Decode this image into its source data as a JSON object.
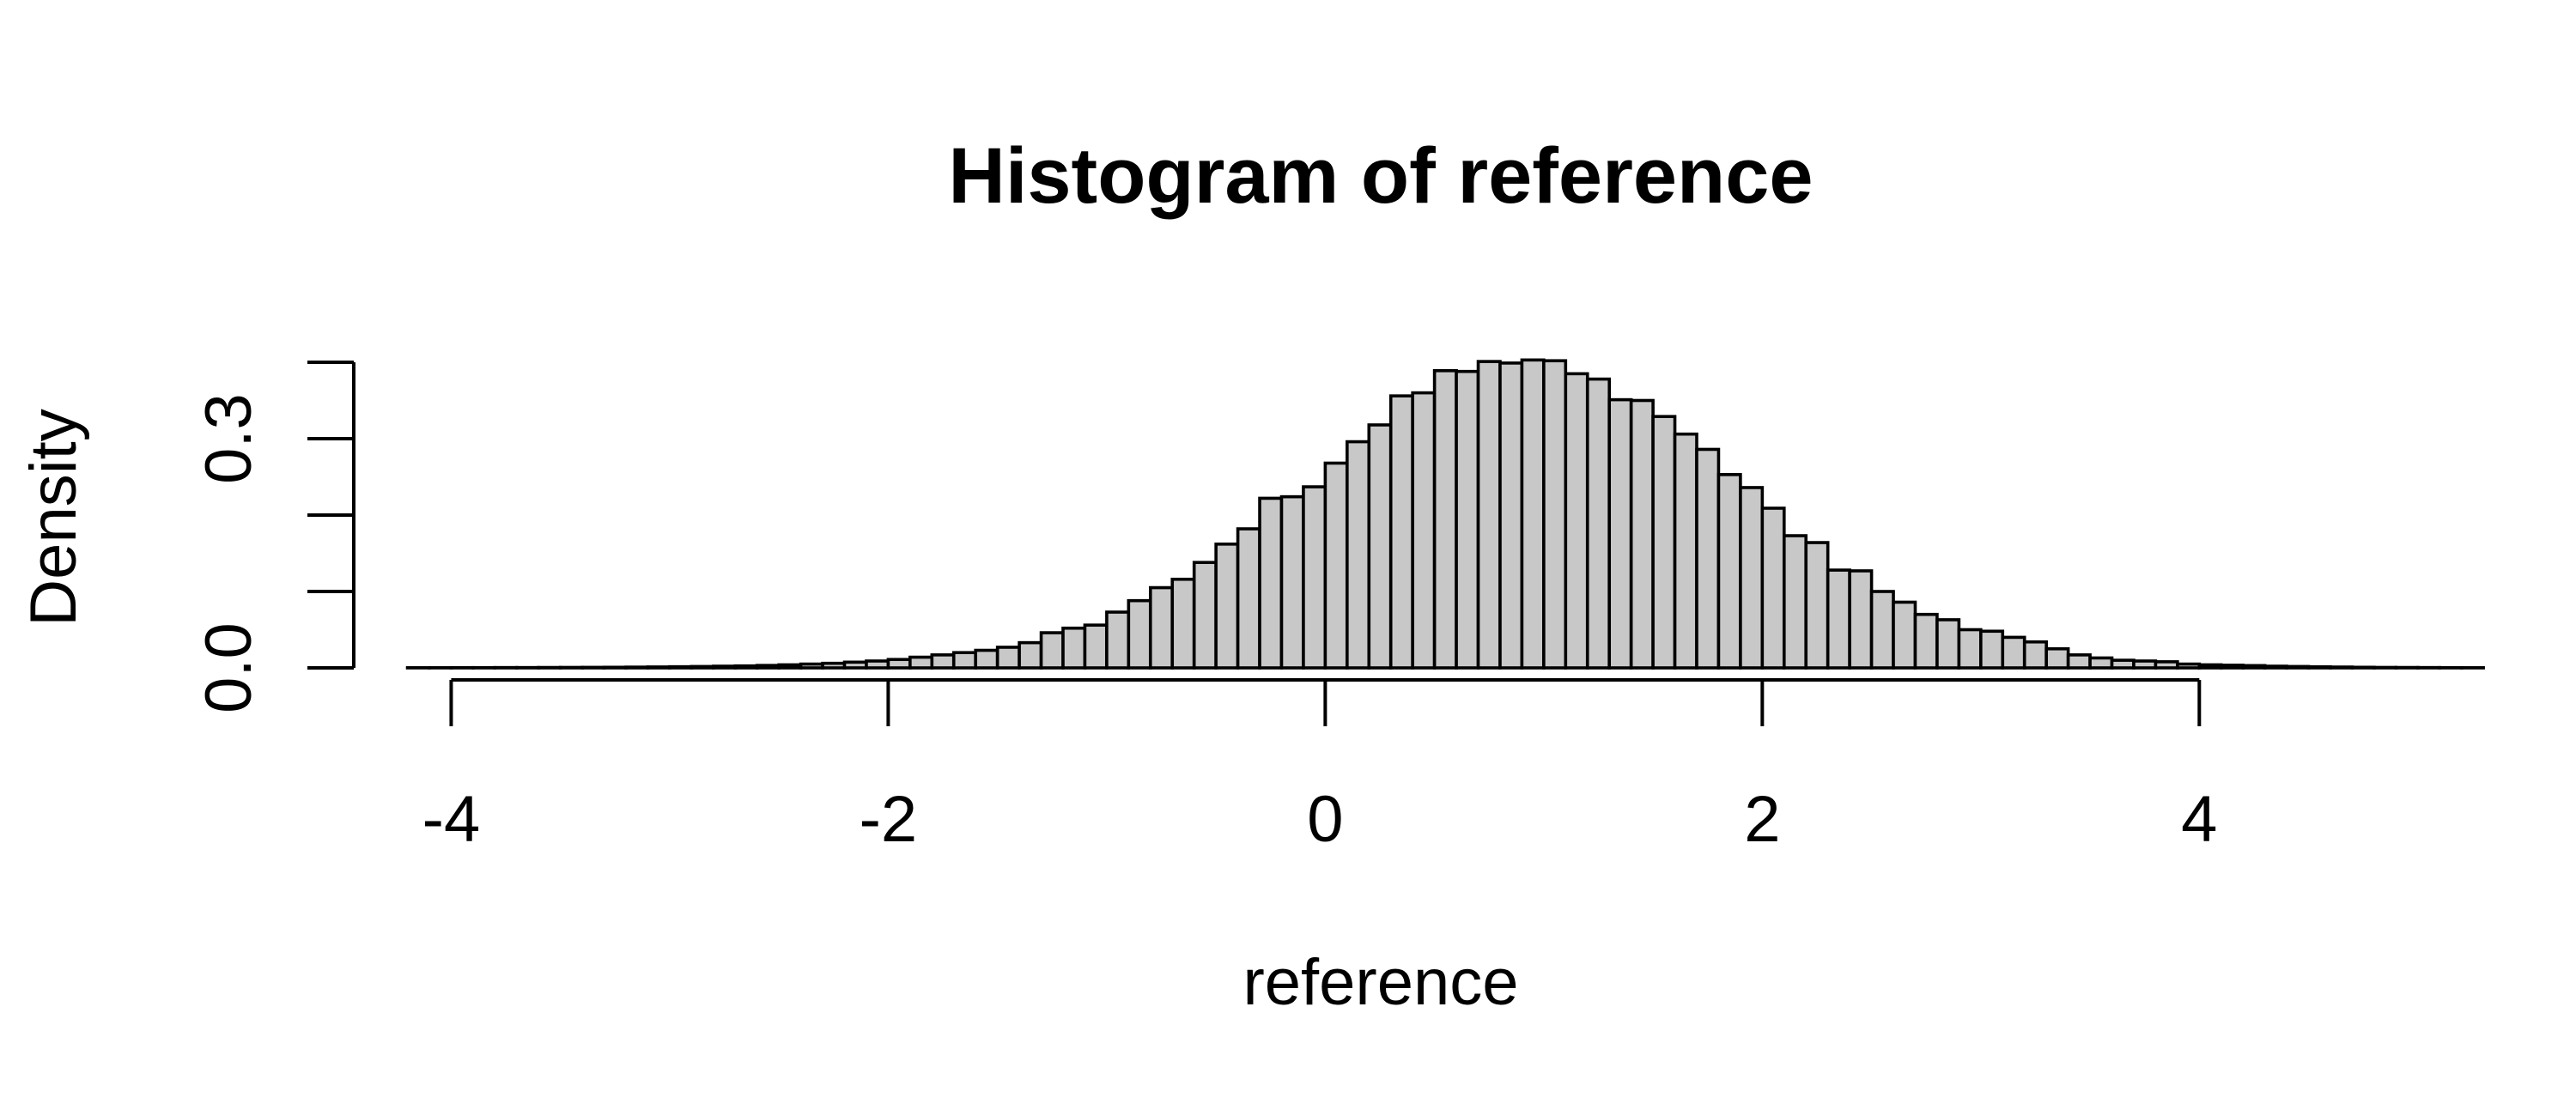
{
  "chart_data": {
    "type": "bar",
    "title": "Histogram of reference",
    "xlabel": "reference",
    "ylabel": "Density",
    "xlim": [
      -4.1,
      4.6
    ],
    "ylim": [
      0,
      0.4
    ],
    "x_ticks": [
      -4,
      -2,
      0,
      2,
      4
    ],
    "x_tick_labels": [
      "-4",
      "-2",
      "0",
      "2",
      "4"
    ],
    "y_ticks": [
      0.0,
      0.1,
      0.2,
      0.3,
      0.4
    ],
    "y_tick_labels": [
      "0.0",
      "",
      "",
      "0.3",
      ""
    ],
    "grid": false,
    "legend": "none",
    "colors": {
      "bar_fill": "#c8c8c8",
      "bar_stroke": "#000000",
      "axis": "#000000"
    },
    "bin_width": 0.1,
    "bin_start": -4.2,
    "values": [
      0.0002,
      0.0002,
      0.0003,
      0.0003,
      0.0004,
      0.0004,
      0.0005,
      0.0006,
      0.0007,
      0.0008,
      0.001,
      0.0012,
      0.0015,
      0.0018,
      0.0022,
      0.0026,
      0.0032,
      0.004,
      0.005,
      0.006,
      0.0075,
      0.009,
      0.011,
      0.014,
      0.017,
      0.02,
      0.023,
      0.027,
      0.033,
      0.046,
      0.052,
      0.056,
      0.073,
      0.088,
      0.105,
      0.116,
      0.138,
      0.162,
      0.182,
      0.222,
      0.224,
      0.237,
      0.268,
      0.296,
      0.318,
      0.356,
      0.36,
      0.389,
      0.388,
      0.401,
      0.399,
      0.403,
      0.402,
      0.385,
      0.378,
      0.351,
      0.35,
      0.329,
      0.306,
      0.286,
      0.253,
      0.236,
      0.209,
      0.173,
      0.164,
      0.128,
      0.127,
      0.1,
      0.086,
      0.07,
      0.063,
      0.05,
      0.048,
      0.04,
      0.034,
      0.025,
      0.017,
      0.013,
      0.01,
      0.009,
      0.008,
      0.005,
      0.004,
      0.0035,
      0.003,
      0.0022,
      0.0018,
      0.0014,
      0.0011,
      0.0008,
      0.0006,
      0.0005,
      0.0004,
      0.0003,
      0.0002
    ]
  }
}
